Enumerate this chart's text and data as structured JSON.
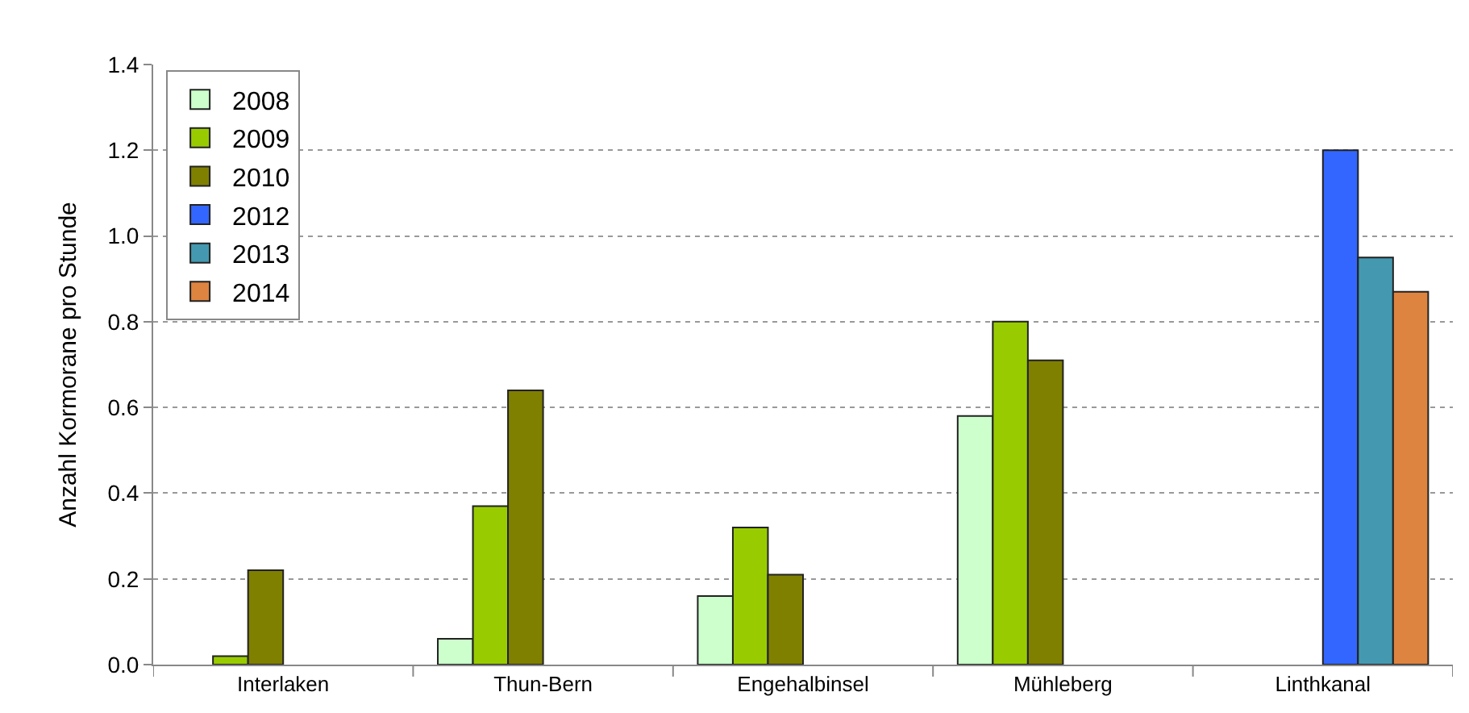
{
  "chart_data": {
    "type": "bar",
    "ylabel": "Anzahl Kormorane pro Stunde",
    "categories": [
      "Interlaken",
      "Thun-Bern",
      "Engehalbinsel",
      "Mühleberg",
      "Linthkanal"
    ],
    "series": [
      {
        "name": "2008",
        "color": "#ccffcc",
        "values": [
          null,
          0.06,
          0.16,
          0.58,
          null
        ]
      },
      {
        "name": "2009",
        "color": "#99cc00",
        "values": [
          0.02,
          0.37,
          0.32,
          0.8,
          null
        ]
      },
      {
        "name": "2010",
        "color": "#808000",
        "values": [
          0.22,
          0.64,
          0.21,
          0.71,
          null
        ]
      },
      {
        "name": "2012",
        "color": "#3366ff",
        "values": [
          null,
          null,
          null,
          null,
          1.2
        ]
      },
      {
        "name": "2013",
        "color": "#4499b0",
        "values": [
          null,
          null,
          null,
          null,
          0.95
        ]
      },
      {
        "name": "2014",
        "color": "#dd8440",
        "values": [
          null,
          null,
          null,
          null,
          0.87
        ]
      }
    ],
    "ylim": [
      0,
      1.4
    ],
    "yticks": [
      {
        "value": 0,
        "label": "0.0"
      },
      {
        "value": 0.2,
        "label": "0.2"
      },
      {
        "value": 0.4,
        "label": "0.4"
      },
      {
        "value": 0.6,
        "label": "0.6"
      },
      {
        "value": 0.8,
        "label": "0.8"
      },
      {
        "value": 1.0,
        "label": "1.0"
      },
      {
        "value": 1.2,
        "label": "1.2"
      },
      {
        "value": 1.4,
        "label": "1.4"
      }
    ],
    "grid": "y",
    "legend": "top left"
  }
}
